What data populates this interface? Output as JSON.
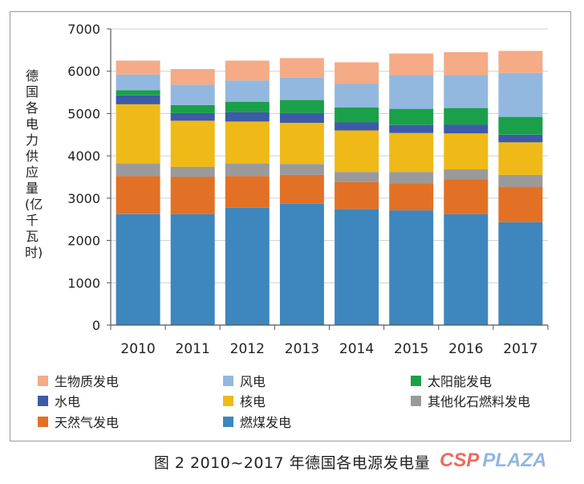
{
  "chart_data": {
    "type": "bar",
    "stacked": true,
    "categories": [
      "2010",
      "2011",
      "2012",
      "2013",
      "2014",
      "2015",
      "2016",
      "2017"
    ],
    "ylabel": "德国各电力供应量(亿千瓦时)",
    "ylim": [
      0,
      7000
    ],
    "yticks": [
      "0",
      "1000",
      "2000",
      "3000",
      "4000",
      "5000",
      "6000",
      "7000"
    ],
    "legend_position": "bottom",
    "series": [
      {
        "name": "燃煤发电",
        "color": "#3e86be",
        "values": [
          2620,
          2620,
          2770,
          2870,
          2740,
          2710,
          2620,
          2430
        ]
      },
      {
        "name": "天然气发电",
        "color": "#e27125",
        "values": [
          900,
          880,
          750,
          680,
          640,
          640,
          830,
          840
        ]
      },
      {
        "name": "其他化石燃料发电",
        "color": "#9a9a9a",
        "values": [
          300,
          240,
          300,
          260,
          240,
          270,
          230,
          280
        ]
      },
      {
        "name": "核电",
        "color": "#efba17",
        "values": [
          1400,
          1090,
          990,
          970,
          980,
          920,
          850,
          770
        ]
      },
      {
        "name": "水电",
        "color": "#3d5aa8",
        "values": [
          210,
          180,
          220,
          230,
          190,
          190,
          210,
          180
        ]
      },
      {
        "name": "太阳能发电",
        "color": "#19a049",
        "values": [
          120,
          190,
          250,
          310,
          350,
          380,
          390,
          420
        ]
      },
      {
        "name": "风电",
        "color": "#92b8e0",
        "values": [
          370,
          480,
          500,
          530,
          560,
          790,
          770,
          1040
        ]
      },
      {
        "name": "生物质发电",
        "color": "#f4ab86",
        "values": [
          330,
          370,
          470,
          460,
          510,
          520,
          550,
          520
        ]
      }
    ]
  },
  "legend_items": [
    {
      "label": "生物质发电",
      "color": "#f4ab86"
    },
    {
      "label": "风电",
      "color": "#92b8e0"
    },
    {
      "label": "太阳能发电",
      "color": "#19a049"
    },
    {
      "label": "水电",
      "color": "#3d5aa8"
    },
    {
      "label": "核电",
      "color": "#efba17"
    },
    {
      "label": "其他化石燃料发电",
      "color": "#9a9a9a"
    },
    {
      "label": "天然气发电",
      "color": "#e27125"
    },
    {
      "label": "燃煤发电",
      "color": "#3e86be"
    }
  ],
  "caption": "图 2   2010~2017 年德国各电源发电量",
  "watermark": {
    "part1": "CSP",
    "part2": "PLAZA"
  }
}
